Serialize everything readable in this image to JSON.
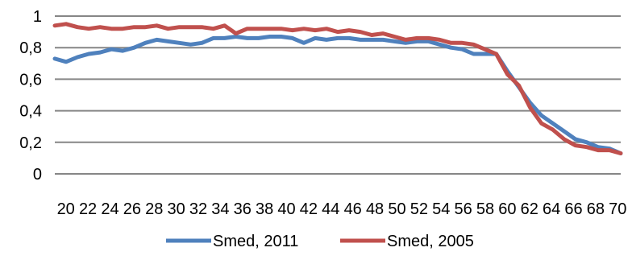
{
  "chart_data": {
    "type": "line",
    "title": "",
    "xlabel": "",
    "ylabel": "",
    "ylim": [
      0,
      1
    ],
    "yticks": [
      0,
      0.2,
      0.4,
      0.6,
      0.8,
      1
    ],
    "ytick_labels": [
      "0",
      "0,2",
      "0,4",
      "0,6",
      "0,8",
      "1"
    ],
    "x": [
      20,
      21,
      22,
      23,
      24,
      25,
      26,
      27,
      28,
      29,
      30,
      31,
      32,
      33,
      34,
      35,
      36,
      37,
      38,
      39,
      40,
      41,
      42,
      43,
      44,
      45,
      46,
      47,
      48,
      49,
      50,
      51,
      52,
      53,
      54,
      55,
      56,
      57,
      58,
      59,
      60,
      61,
      62,
      63,
      64,
      65,
      66,
      67,
      68,
      69,
      70
    ],
    "xtick_labels": [
      "20",
      "22",
      "24",
      "26",
      "28",
      "30",
      "32",
      "34",
      "36",
      "38",
      "40",
      "42",
      "44",
      "46",
      "48",
      "50",
      "52",
      "54",
      "56",
      "58",
      "60",
      "62",
      "64",
      "66",
      "68",
      "70"
    ],
    "grid": "horizontal",
    "legend_position": "bottom",
    "series": [
      {
        "name": "Smed, 2011",
        "color": "#4f81bd",
        "values": [
          0.73,
          0.71,
          0.74,
          0.76,
          0.77,
          0.79,
          0.78,
          0.8,
          0.83,
          0.85,
          0.84,
          0.83,
          0.82,
          0.83,
          0.86,
          0.86,
          0.87,
          0.86,
          0.86,
          0.87,
          0.87,
          0.86,
          0.83,
          0.86,
          0.85,
          0.86,
          0.86,
          0.85,
          0.85,
          0.85,
          0.84,
          0.83,
          0.84,
          0.84,
          0.82,
          0.8,
          0.79,
          0.76,
          0.76,
          0.76,
          0.65,
          0.55,
          0.45,
          0.37,
          0.32,
          0.27,
          0.22,
          0.2,
          0.17,
          0.16,
          0.13
        ]
      },
      {
        "name": "Smed, 2005",
        "color": "#c0504d",
        "values": [
          0.94,
          0.95,
          0.93,
          0.92,
          0.93,
          0.92,
          0.92,
          0.93,
          0.93,
          0.94,
          0.92,
          0.93,
          0.93,
          0.93,
          0.92,
          0.94,
          0.89,
          0.92,
          0.92,
          0.92,
          0.92,
          0.91,
          0.92,
          0.91,
          0.92,
          0.9,
          0.91,
          0.9,
          0.88,
          0.89,
          0.87,
          0.85,
          0.86,
          0.86,
          0.85,
          0.83,
          0.83,
          0.82,
          0.79,
          0.76,
          0.63,
          0.56,
          0.42,
          0.32,
          0.28,
          0.22,
          0.18,
          0.17,
          0.15,
          0.15,
          0.13
        ]
      }
    ]
  }
}
